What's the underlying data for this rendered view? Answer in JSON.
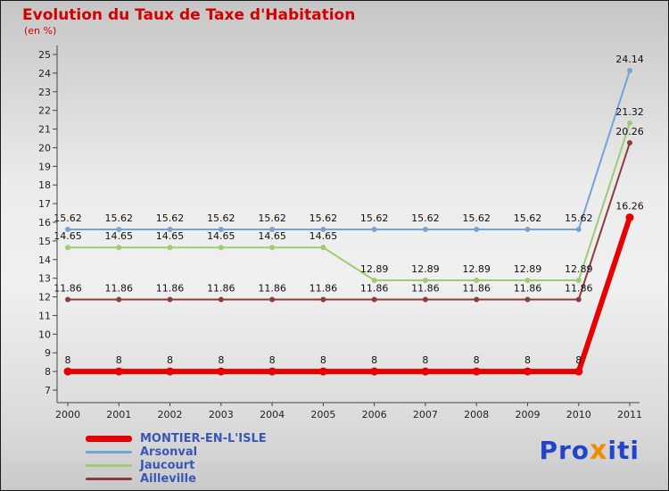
{
  "title": "Evolution du Taux de Taxe d'Habitation",
  "subtitle": "(en %)",
  "title_color": "#d40000",
  "axis_color": "#444444",
  "tick_label_color": "#222222",
  "point_label_color": "#111111",
  "legend_text_color": "#3a57b5",
  "logo": {
    "part1": "Pro",
    "part2": "x",
    "part3": "iti",
    "color_main": "#2244cc",
    "color_x": "#f08c00"
  },
  "chart_data": {
    "type": "line",
    "x": [
      2000,
      2001,
      2002,
      2003,
      2004,
      2005,
      2006,
      2007,
      2008,
      2009,
      2010,
      2011
    ],
    "ylim": [
      7,
      25
    ],
    "yticks": [
      7,
      8,
      9,
      10,
      11,
      12,
      13,
      14,
      15,
      16,
      17,
      18,
      19,
      20,
      21,
      22,
      23,
      24,
      25
    ],
    "grid": false,
    "legend_position": "bottom-left",
    "series": [
      {
        "name": "MONTIER-EN-L'ISLE",
        "color": "#e60000",
        "width": 6,
        "values": [
          8,
          8,
          8,
          8,
          8,
          8,
          8,
          8,
          8,
          8,
          8,
          16.26
        ]
      },
      {
        "name": "Arsonval",
        "color": "#74a3d4",
        "width": 2,
        "values": [
          15.62,
          15.62,
          15.62,
          15.62,
          15.62,
          15.62,
          15.62,
          15.62,
          15.62,
          15.62,
          15.62,
          24.14
        ]
      },
      {
        "name": "Jaucourt",
        "color": "#9fcb73",
        "width": 2,
        "values": [
          14.65,
          14.65,
          14.65,
          14.65,
          14.65,
          14.65,
          12.89,
          12.89,
          12.89,
          12.89,
          12.89,
          21.32
        ]
      },
      {
        "name": "Ailleville",
        "color": "#8a3d3d",
        "width": 2,
        "values": [
          11.86,
          11.86,
          11.86,
          11.86,
          11.86,
          11.86,
          11.86,
          11.86,
          11.86,
          11.86,
          11.86,
          20.26
        ]
      }
    ]
  }
}
